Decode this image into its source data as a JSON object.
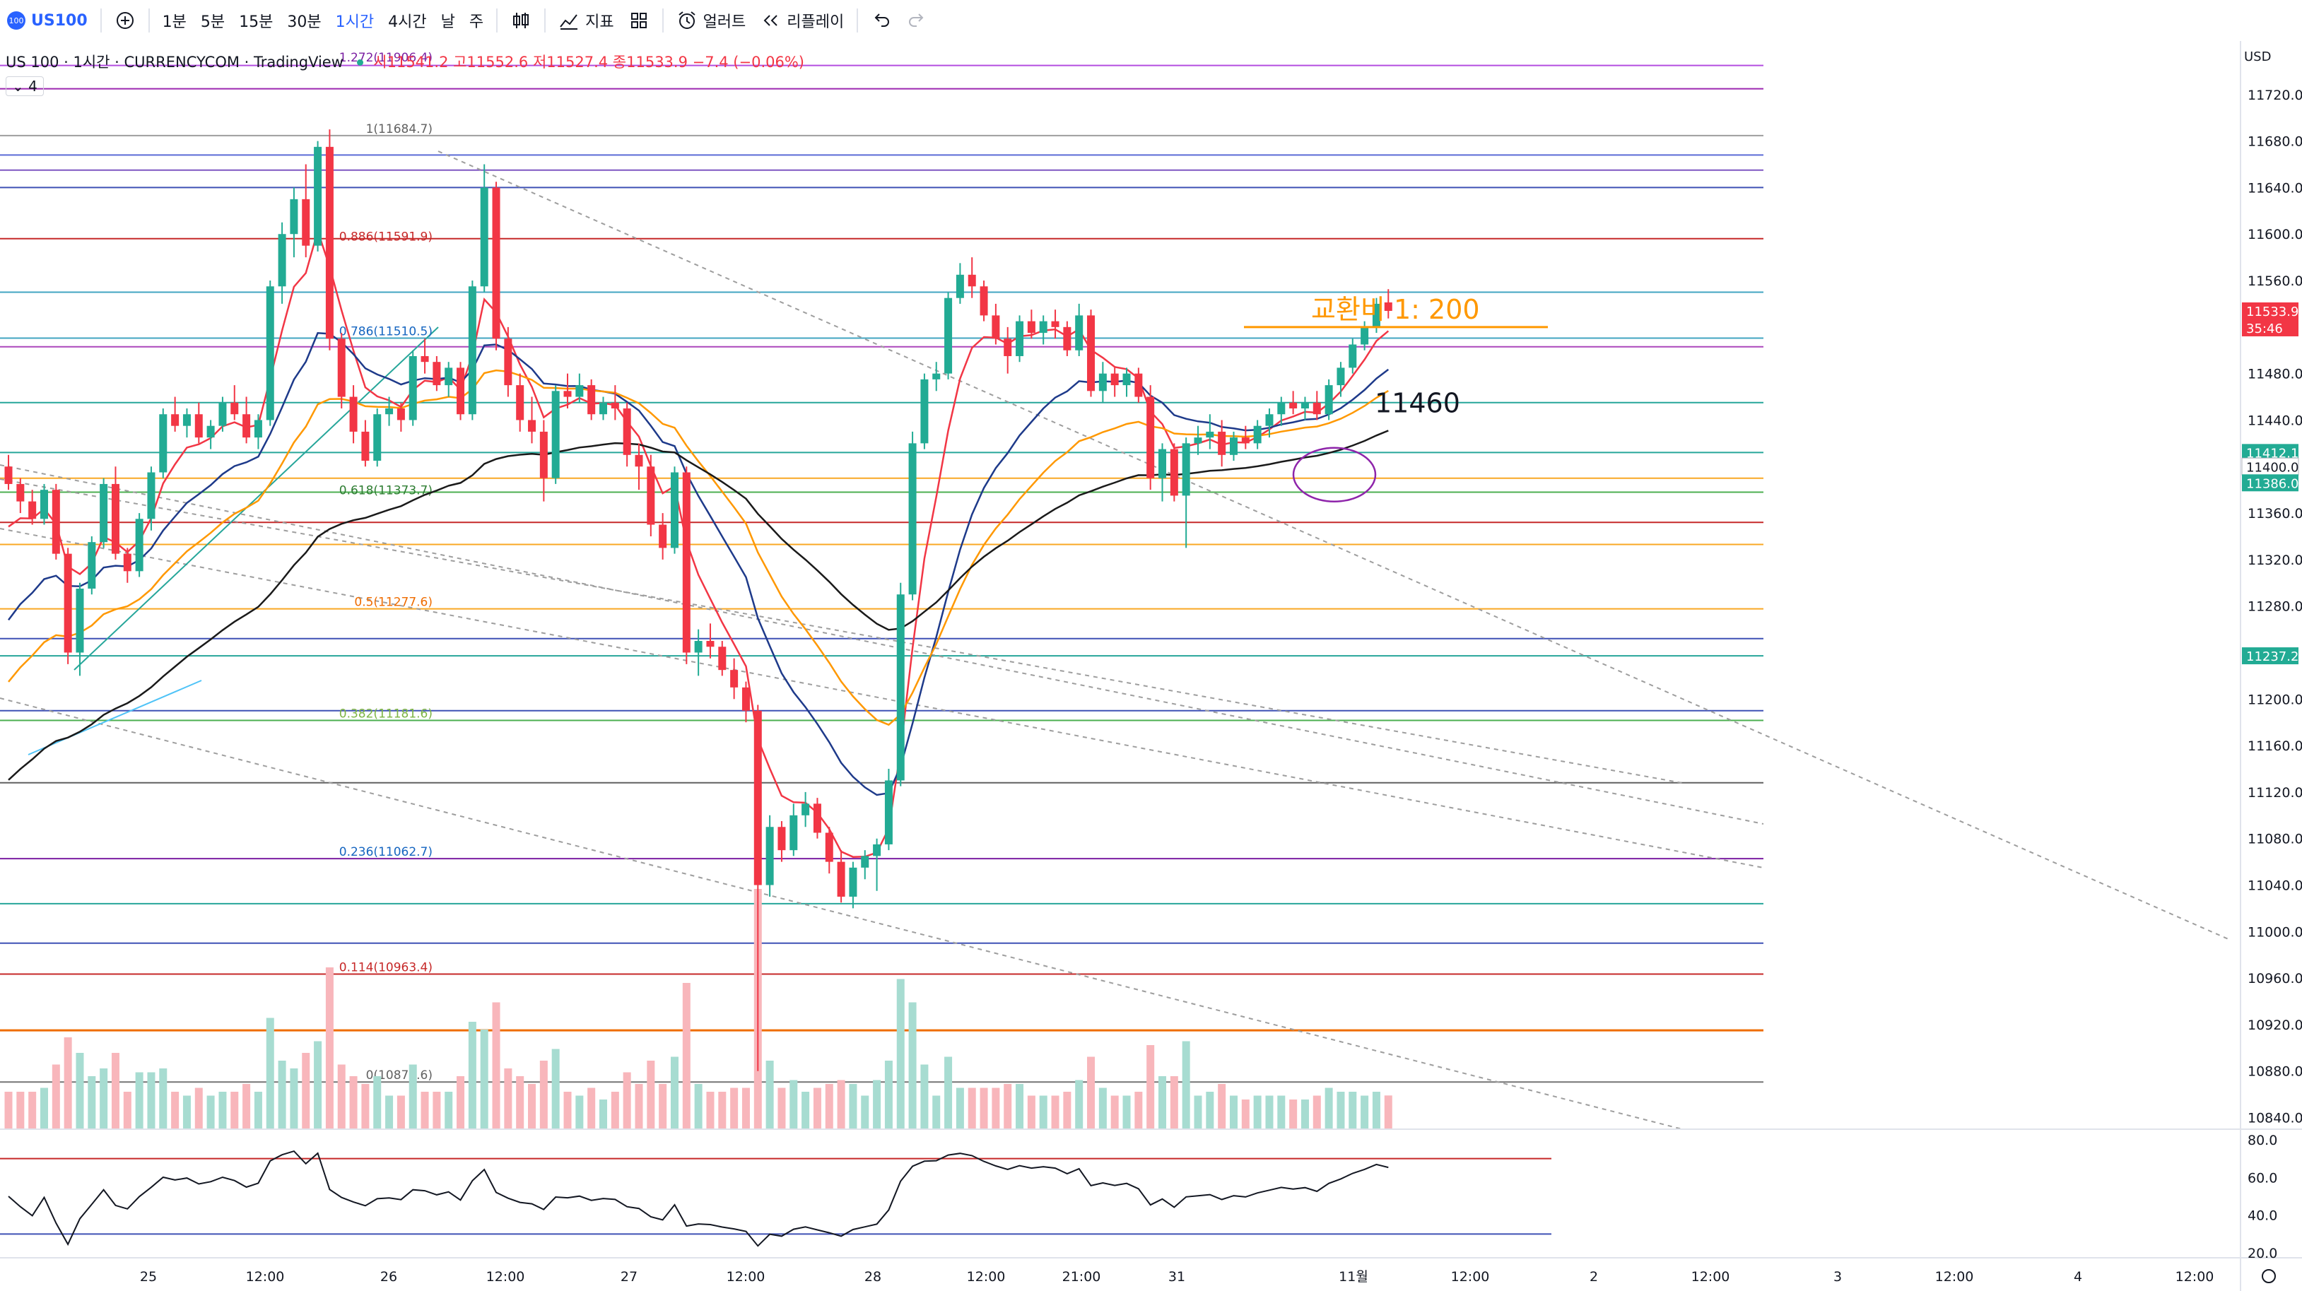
{
  "toolbar": {
    "symbol_badge": "100",
    "symbol": "US100",
    "add_icon": "plus-circle-icon",
    "intervals": [
      "1분",
      "5분",
      "15분",
      "30분",
      "1시간",
      "4시간",
      "날",
      "주"
    ],
    "active_interval": "1시간",
    "chart_type_icon": "candles-icon",
    "indicators_label": "지표",
    "layouts_icon": "grid-icon",
    "alert_label": "얼러트",
    "replay_label": "리플레이",
    "undo_icon": "undo-icon",
    "redo_icon": "redo-icon"
  },
  "legend": {
    "title": "US 100 · 1시간 · CURRENCYCOM · TradingView",
    "ohlc": "시11541.2 고11552.6 저11527.4 종11533.9 −7.4 (−0.06%)",
    "indicator_count": "4"
  },
  "price_axis": {
    "currency": "USD",
    "ticks": [
      "11720.0",
      "11680.0",
      "11640.0",
      "11600.0",
      "11560.0",
      "11480.0",
      "11440.0",
      "11360.0",
      "11320.0",
      "11280.0",
      "11200.0",
      "11160.0",
      "11120.0",
      "11080.0",
      "11040.0",
      "11000.0",
      "10960.0",
      "10920.0",
      "10880.0",
      "10840.0"
    ],
    "badges": [
      {
        "text": "11533.9",
        "sub": "35:46",
        "color": "#f23645"
      },
      {
        "text": "11412.1",
        "color": "#22ab94"
      },
      {
        "text": "11400.0",
        "color": "#ffffff"
      },
      {
        "text": "11386.0",
        "color": "#22ab94"
      },
      {
        "text": "11237.2",
        "color": "#22ab94"
      }
    ]
  },
  "time_axis": {
    "ticks": [
      "25",
      "12:00",
      "26",
      "12:00",
      "27",
      "12:00",
      "28",
      "12:00",
      "21:00",
      "31",
      "11월",
      "12:00",
      "2",
      "12:00",
      "3",
      "12:00",
      "4",
      "12:00"
    ]
  },
  "rsi_axis": {
    "ticks": [
      "80.0",
      "60.0",
      "40.0",
      "20.0"
    ]
  },
  "fib_labels": [
    "1(11684.7)",
    "0.886(11591.9)",
    "0.786(11510.5)",
    "0.618(11373.7)",
    "0.5(11277.6)",
    "0.382(11181.6)",
    "0.236(11062.7)",
    "0.114(10963.4)",
    "0(10870.6)",
    "1.272(11906.4)"
  ],
  "annotations": {
    "exchange": "교환비 1: 200",
    "level": "11460"
  },
  "colors": {
    "up": "#22ab94",
    "down": "#f23645",
    "ema_fast": "#f23645",
    "ema_mid": "#1e3a8a",
    "ema_slow": "#ff9800",
    "ema_long": "#1a1a1a",
    "annotation": "#ff9800",
    "accent": "#2962ff"
  },
  "chart_data": {
    "type": "candlestick",
    "symbol": "US 100",
    "interval": "1시간",
    "ylim": [
      10830,
      11760
    ],
    "candles": [
      [
        11400,
        11410,
        11380,
        11385
      ],
      [
        11385,
        11390,
        11360,
        11370
      ],
      [
        11370,
        11380,
        11350,
        11355
      ],
      [
        11355,
        11385,
        11350,
        11380
      ],
      [
        11380,
        11385,
        11320,
        11325
      ],
      [
        11325,
        11330,
        11230,
        11240
      ],
      [
        11240,
        11300,
        11220,
        11295
      ],
      [
        11295,
        11340,
        11290,
        11335
      ],
      [
        11335,
        11390,
        11330,
        11385
      ],
      [
        11385,
        11400,
        11320,
        11325
      ],
      [
        11325,
        11330,
        11300,
        11310
      ],
      [
        11310,
        11360,
        11305,
        11355
      ],
      [
        11355,
        11400,
        11345,
        11395
      ],
      [
        11395,
        11450,
        11390,
        11445
      ],
      [
        11445,
        11460,
        11430,
        11435
      ],
      [
        11435,
        11450,
        11425,
        11445
      ],
      [
        11445,
        11455,
        11420,
        11425
      ],
      [
        11425,
        11440,
        11415,
        11435
      ],
      [
        11435,
        11460,
        11430,
        11455
      ],
      [
        11455,
        11470,
        11440,
        11445
      ],
      [
        11445,
        11460,
        11420,
        11425
      ],
      [
        11425,
        11445,
        11415,
        11440
      ],
      [
        11440,
        11560,
        11435,
        11555
      ],
      [
        11555,
        11610,
        11540,
        11600
      ],
      [
        11600,
        11640,
        11580,
        11630
      ],
      [
        11630,
        11660,
        11580,
        11590
      ],
      [
        11590,
        11680,
        11585,
        11675
      ],
      [
        11675,
        11690,
        11500,
        11510
      ],
      [
        11510,
        11515,
        11450,
        11460
      ],
      [
        11460,
        11470,
        11420,
        11430
      ],
      [
        11430,
        11440,
        11400,
        11405
      ],
      [
        11405,
        11450,
        11400,
        11445
      ],
      [
        11445,
        11460,
        11435,
        11450
      ],
      [
        11450,
        11455,
        11430,
        11440
      ],
      [
        11440,
        11500,
        11435,
        11495
      ],
      [
        11495,
        11510,
        11480,
        11490
      ],
      [
        11490,
        11495,
        11465,
        11470
      ],
      [
        11470,
        11490,
        11460,
        11485
      ],
      [
        11485,
        11490,
        11440,
        11445
      ],
      [
        11445,
        11560,
        11440,
        11555
      ],
      [
        11555,
        11660,
        11550,
        11640
      ],
      [
        11640,
        11645,
        11500,
        11510
      ],
      [
        11510,
        11520,
        11460,
        11470
      ],
      [
        11470,
        11480,
        11430,
        11440
      ],
      [
        11440,
        11460,
        11420,
        11430
      ],
      [
        11430,
        11440,
        11370,
        11390
      ],
      [
        11390,
        11470,
        11385,
        11465
      ],
      [
        11465,
        11480,
        11450,
        11460
      ],
      [
        11460,
        11480,
        11455,
        11470
      ],
      [
        11470,
        11475,
        11440,
        11445
      ],
      [
        11445,
        11460,
        11440,
        11455
      ],
      [
        11455,
        11470,
        11440,
        11450
      ],
      [
        11450,
        11455,
        11400,
        11410
      ],
      [
        11410,
        11420,
        11380,
        11400
      ],
      [
        11400,
        11410,
        11340,
        11350
      ],
      [
        11350,
        11360,
        11320,
        11330
      ],
      [
        11330,
        11400,
        11325,
        11395
      ],
      [
        11395,
        11400,
        11230,
        11240
      ],
      [
        11240,
        11260,
        11220,
        11250
      ],
      [
        11250,
        11265,
        11235,
        11245
      ],
      [
        11245,
        11250,
        11220,
        11225
      ],
      [
        11225,
        11235,
        11200,
        11210
      ],
      [
        11210,
        11215,
        11180,
        11190
      ],
      [
        11190,
        11195,
        10880,
        11040
      ],
      [
        11040,
        11100,
        11030,
        11090
      ],
      [
        11090,
        11095,
        11060,
        11070
      ],
      [
        11070,
        11110,
        11065,
        11100
      ],
      [
        11100,
        11120,
        11090,
        11110
      ],
      [
        11110,
        11115,
        11080,
        11085
      ],
      [
        11085,
        11090,
        11050,
        11060
      ],
      [
        11060,
        11070,
        11025,
        11030
      ],
      [
        11030,
        11060,
        11020,
        11055
      ],
      [
        11055,
        11070,
        11045,
        11065
      ],
      [
        11065,
        11080,
        11035,
        11075
      ],
      [
        11075,
        11140,
        11070,
        11130
      ],
      [
        11130,
        11300,
        11125,
        11290
      ],
      [
        11290,
        11430,
        11285,
        11420
      ],
      [
        11420,
        11480,
        11415,
        11475
      ],
      [
        11475,
        11490,
        11465,
        11480
      ],
      [
        11480,
        11550,
        11475,
        11545
      ],
      [
        11545,
        11575,
        11540,
        11565
      ],
      [
        11565,
        11580,
        11545,
        11555
      ],
      [
        11555,
        11560,
        11525,
        11530
      ],
      [
        11530,
        11540,
        11505,
        11510
      ],
      [
        11510,
        11520,
        11480,
        11495
      ],
      [
        11495,
        11530,
        11490,
        11525
      ],
      [
        11525,
        11535,
        11510,
        11515
      ],
      [
        11515,
        11530,
        11505,
        11525
      ],
      [
        11525,
        11535,
        11510,
        11520
      ],
      [
        11520,
        11525,
        11495,
        11500
      ],
      [
        11500,
        11540,
        11495,
        11530
      ],
      [
        11530,
        11535,
        11460,
        11465
      ],
      [
        11465,
        11490,
        11455,
        11480
      ],
      [
        11480,
        11485,
        11460,
        11470
      ],
      [
        11470,
        11485,
        11460,
        11480
      ],
      [
        11480,
        11485,
        11455,
        11460
      ],
      [
        11460,
        11470,
        11380,
        11390
      ],
      [
        11390,
        11420,
        11370,
        11415
      ],
      [
        11415,
        11420,
        11370,
        11375
      ],
      [
        11375,
        11425,
        11330,
        11420
      ],
      [
        11420,
        11435,
        11410,
        11425
      ],
      [
        11425,
        11445,
        11415,
        11430
      ],
      [
        11430,
        11440,
        11400,
        11410
      ],
      [
        11410,
        11430,
        11405,
        11425
      ],
      [
        11425,
        11435,
        11415,
        11420
      ],
      [
        11420,
        11440,
        11415,
        11435
      ],
      [
        11435,
        11450,
        11425,
        11445
      ],
      [
        11445,
        11460,
        11435,
        11455
      ],
      [
        11455,
        11465,
        11445,
        11450
      ],
      [
        11450,
        11460,
        11440,
        11455
      ],
      [
        11455,
        11465,
        11440,
        11445
      ],
      [
        11445,
        11475,
        11440,
        11470
      ],
      [
        11470,
        11490,
        11460,
        11485
      ],
      [
        11485,
        11510,
        11480,
        11505
      ],
      [
        11505,
        11525,
        11500,
        11520
      ],
      [
        11520,
        11545,
        11515,
        11540
      ],
      [
        11541.2,
        11552.6,
        11527.4,
        11533.9
      ]
    ]
  }
}
